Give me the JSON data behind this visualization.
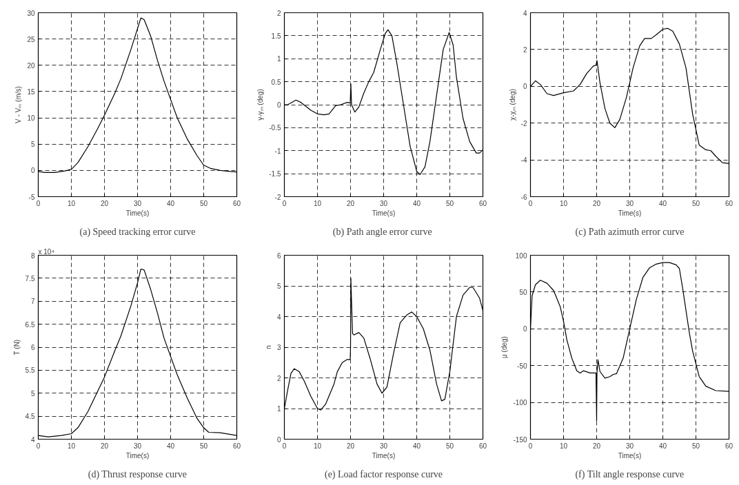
{
  "chart_data": [
    {
      "type": "line",
      "title": "(a) Speed tracking error curve",
      "xlabel": "Time(s)",
      "ylabel": "V - Vₘ (m/s)",
      "color": "#000000",
      "line_style": "solid",
      "grid": true,
      "xlim": [
        0,
        60
      ],
      "ylim": [
        -5,
        30
      ],
      "xticks": [
        0,
        10,
        20,
        30,
        40,
        50,
        60
      ],
      "yticks": [
        -5,
        0,
        5,
        10,
        15,
        20,
        25,
        30
      ],
      "x": [
        0,
        2,
        5,
        8,
        10,
        12,
        15,
        18,
        20,
        23,
        25,
        28,
        30,
        31,
        32,
        34,
        36,
        38,
        40,
        42,
        45,
        48,
        50,
        52,
        55,
        58,
        60
      ],
      "values": [
        -0.2,
        -0.4,
        -0.4,
        -0.1,
        0.2,
        1.5,
        4.5,
        8,
        10.5,
        14.5,
        17.5,
        23,
        27,
        29,
        28.7,
        25.5,
        21,
        17,
        13.5,
        10,
        6,
        2.8,
        1,
        0.4,
        0,
        -0.2,
        -0.3
      ]
    },
    {
      "type": "line",
      "title": "(b) Path angle  error curve",
      "xlabel": "Time(s)",
      "ylabel": "γ-γₘ (deg)",
      "color": "#000000",
      "line_style": "solid",
      "grid": true,
      "xlim": [
        0,
        60
      ],
      "ylim": [
        -2,
        2
      ],
      "xticks": [
        0,
        10,
        20,
        30,
        40,
        50,
        60
      ],
      "yticks": [
        -2,
        -1.5,
        -1,
        -0.5,
        0,
        0.5,
        1,
        1.5,
        2
      ],
      "x": [
        0,
        1,
        3.5,
        5,
        8,
        10,
        12,
        13.5,
        15.5,
        17,
        19,
        19.9,
        20.1,
        20.3,
        21.3,
        22.5,
        24,
        25.5,
        27,
        29,
        30.5,
        31.3,
        32.5,
        34,
        36,
        38,
        40,
        41,
        42.5,
        44,
        46,
        48,
        49.8,
        51,
        52,
        54,
        56,
        58,
        59,
        60
      ],
      "values": [
        0,
        0,
        0.1,
        0.05,
        -0.12,
        -0.2,
        -0.22,
        -0.2,
        -0.02,
        0,
        0.05,
        0.04,
        0.45,
        0,
        -0.16,
        -0.05,
        0.25,
        0.5,
        0.7,
        1.2,
        1.55,
        1.63,
        1.5,
        0.9,
        0,
        -0.9,
        -1.45,
        -1.52,
        -1.35,
        -0.8,
        0.2,
        1.2,
        1.57,
        1.3,
        0.6,
        -0.3,
        -0.8,
        -1.05,
        -1.05,
        -0.98
      ]
    },
    {
      "type": "line",
      "title": "(c) Path azimuth error curve",
      "xlabel": "Time(s)",
      "ylabel": "χ-χₘ (deg)",
      "color": "#000000",
      "line_style": "solid",
      "grid": true,
      "xlim": [
        0,
        60
      ],
      "ylim": [
        -6,
        4
      ],
      "xticks": [
        0,
        10,
        20,
        30,
        40,
        50,
        60
      ],
      "yticks": [
        -6,
        -4,
        -2,
        0,
        2,
        4
      ],
      "x": [
        0,
        1.5,
        3,
        5,
        7,
        10,
        13,
        15,
        17,
        19,
        19.8,
        20.1,
        21,
        22.5,
        24,
        25.5,
        27,
        29,
        31,
        33,
        34.5,
        36.5,
        38,
        40,
        41.5,
        43,
        45,
        47,
        49,
        51,
        53,
        54.5,
        56,
        58,
        60
      ],
      "values": [
        0,
        0.3,
        0.1,
        -0.4,
        -0.5,
        -0.35,
        -0.25,
        0.1,
        0.7,
        1.1,
        1.15,
        1.4,
        0.2,
        -1.2,
        -2,
        -2.25,
        -1.8,
        -0.6,
        1,
        2.2,
        2.6,
        2.6,
        2.8,
        3.1,
        3.15,
        3,
        2.3,
        1,
        -1.5,
        -3.2,
        -3.45,
        -3.5,
        -3.8,
        -4.15,
        -4.2
      ]
    },
    {
      "type": "line",
      "title": "(d) Thrust response curve",
      "xlabel": "Time(s)",
      "ylabel": "T (N)",
      "annotations": [
        "x 10⁴"
      ],
      "color": "#000000",
      "line_style": "solid",
      "grid": true,
      "xlim": [
        0,
        60
      ],
      "ylim": [
        4,
        8
      ],
      "xticks": [
        0,
        10,
        20,
        30,
        40,
        50,
        60
      ],
      "yticks": [
        4,
        4.5,
        5,
        5.5,
        6,
        6.5,
        7,
        7.5,
        8
      ],
      "x": [
        0,
        3,
        7,
        10,
        12,
        15,
        18,
        20,
        23,
        25,
        28,
        30,
        31,
        32,
        34,
        36,
        38,
        40,
        42,
        45,
        48,
        50,
        51.5,
        55,
        60
      ],
      "values": [
        4.08,
        4.05,
        4.08,
        4.12,
        4.25,
        4.6,
        5.05,
        5.35,
        5.9,
        6.25,
        6.9,
        7.4,
        7.7,
        7.68,
        7.25,
        6.75,
        6.2,
        5.8,
        5.4,
        4.9,
        4.45,
        4.25,
        4.15,
        4.14,
        4.08
      ]
    },
    {
      "type": "line",
      "title": "(e) Load factor response curve",
      "xlabel": "Time(s)",
      "ylabel": "n",
      "color": "#000000",
      "line_style": "solid",
      "grid": true,
      "xlim": [
        0,
        60
      ],
      "ylim": [
        0,
        6
      ],
      "xticks": [
        0,
        10,
        20,
        30,
        40,
        50,
        60
      ],
      "yticks": [
        0,
        1,
        2,
        3,
        4,
        5,
        6
      ],
      "x": [
        0,
        1,
        2,
        3,
        4.5,
        6,
        8,
        10,
        11,
        12.5,
        15,
        16,
        17.5,
        19,
        19.9,
        20,
        20.1,
        20.3,
        20.6,
        21,
        22.5,
        24,
        26,
        28,
        29.5,
        31,
        33,
        35,
        37,
        38.5,
        40,
        42,
        44,
        46,
        47.5,
        48.5,
        50,
        52,
        54,
        56,
        57,
        59,
        60
      ],
      "values": [
        1,
        1.6,
        2.15,
        2.3,
        2.2,
        1.9,
        1.4,
        1,
        0.95,
        1.15,
        1.8,
        2.2,
        2.5,
        2.6,
        2.6,
        3,
        5.25,
        4.5,
        3.45,
        3.4,
        3.48,
        3.3,
        2.6,
        1.8,
        1.5,
        1.7,
        2.8,
        3.8,
        4.05,
        4.15,
        4,
        3.6,
        2.9,
        1.8,
        1.25,
        1.3,
        2.2,
        4,
        4.7,
        4.95,
        4.95,
        4.6,
        4.2
      ]
    },
    {
      "type": "line",
      "title": "(f) Tilt angle response curve",
      "xlabel": "Time(s)",
      "ylabel": "μ (deg)",
      "color": "#000000",
      "line_style": "solid",
      "grid": true,
      "xlim": [
        0,
        60
      ],
      "ylim": [
        -150,
        100
      ],
      "xticks": [
        0,
        10,
        20,
        30,
        40,
        50,
        60
      ],
      "yticks": [
        -150,
        -100,
        -50,
        0,
        50,
        100
      ],
      "x": [
        0,
        0.5,
        1.5,
        3,
        5,
        7,
        9,
        10,
        11,
        12.5,
        14,
        15,
        16,
        18,
        19.8,
        20,
        20.1,
        20.4,
        21,
        22.5,
        24,
        25,
        26,
        28,
        30,
        32,
        34,
        36,
        38,
        40,
        42,
        44,
        45,
        46,
        47,
        48,
        49,
        51,
        53,
        56,
        60
      ],
      "values": [
        0,
        45,
        60,
        66,
        62,
        52,
        30,
        10,
        -15,
        -40,
        -57,
        -60,
        -57,
        -60,
        -60,
        -125,
        -60,
        -42,
        -58,
        -67,
        -65,
        -62,
        -61,
        -40,
        0,
        40,
        70,
        83,
        88,
        90,
        90,
        87,
        82,
        55,
        25,
        -5,
        -30,
        -65,
        -78,
        -84,
        -85
      ]
    }
  ]
}
